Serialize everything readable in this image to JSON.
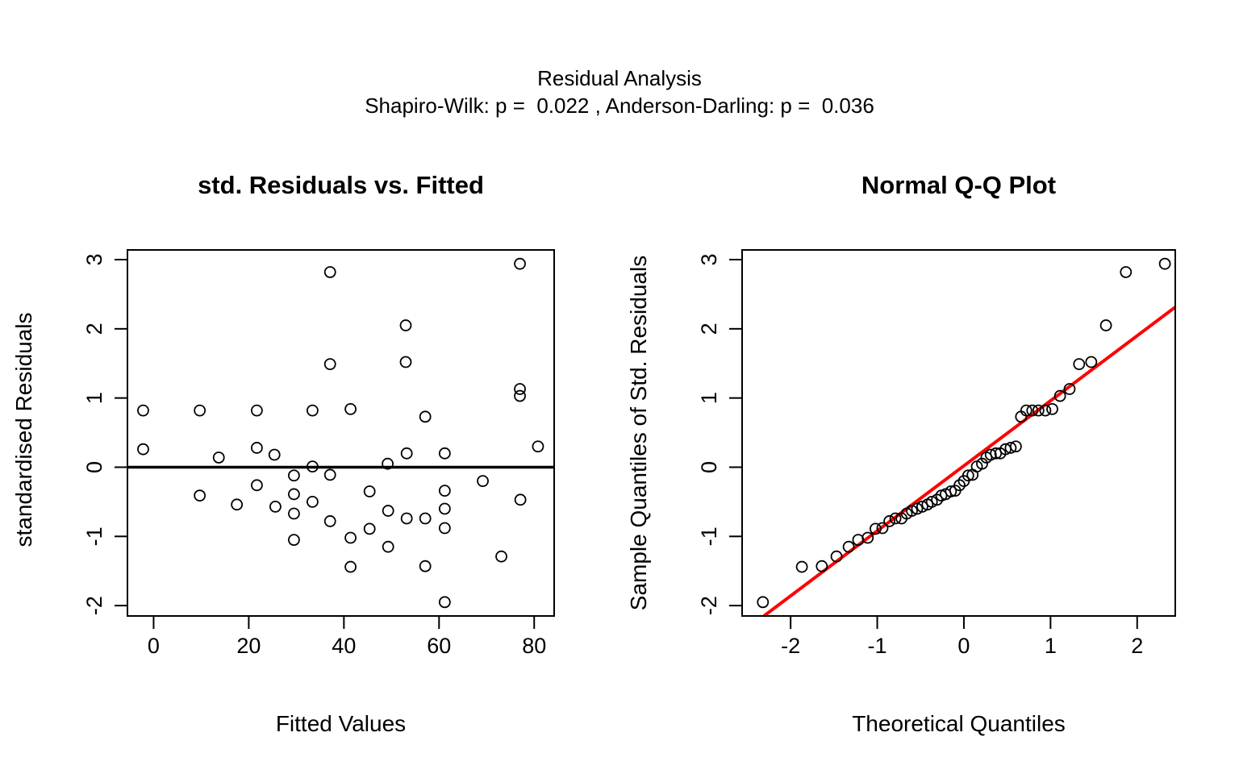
{
  "header": {
    "title": "Residual Analysis",
    "subtitle": "Shapiro-Wilk: p =  0.022 , Anderson-Darling: p =  0.036"
  },
  "colors": {
    "background": "#FFFFFF",
    "point_stroke": "#000000",
    "zero_line": "#000000",
    "qq_line": "#FF0000",
    "axis": "#000000"
  },
  "chart_data": [
    {
      "type": "scatter",
      "id": "residuals-vs-fitted",
      "title": "std. Residuals vs. Fitted",
      "xlabel": "Fitted Values",
      "ylabel": "standardised Residuals",
      "xlim": [
        -5.5,
        84.2
      ],
      "ylim": [
        -2.15,
        3.14
      ],
      "xticks": [
        0,
        20,
        40,
        60,
        80
      ],
      "yticks": [
        -2,
        -1,
        0,
        1,
        2,
        3
      ],
      "grid": false,
      "hline_y": 0,
      "points": [
        [
          -2.2,
          0.82
        ],
        [
          9.7,
          0.82
        ],
        [
          21.7,
          0.82
        ],
        [
          33.4,
          0.82
        ],
        [
          41.4,
          0.84
        ],
        [
          37.1,
          2.82
        ],
        [
          37.1,
          1.49
        ],
        [
          77.0,
          2.94
        ],
        [
          53.0,
          2.05
        ],
        [
          53.0,
          1.52
        ],
        [
          77.0,
          1.13
        ],
        [
          77.0,
          1.03
        ],
        [
          57.1,
          0.73
        ],
        [
          -2.2,
          0.26
        ],
        [
          13.7,
          0.14
        ],
        [
          21.7,
          0.28
        ],
        [
          25.4,
          0.18
        ],
        [
          33.4,
          0.01
        ],
        [
          29.5,
          -0.12
        ],
        [
          37.1,
          -0.11
        ],
        [
          21.7,
          -0.26
        ],
        [
          9.7,
          -0.41
        ],
        [
          17.5,
          -0.54
        ],
        [
          25.6,
          -0.57
        ],
        [
          29.5,
          -0.39
        ],
        [
          29.5,
          -0.67
        ],
        [
          33.4,
          -0.5
        ],
        [
          37.1,
          -0.78
        ],
        [
          29.5,
          -1.05
        ],
        [
          49.2,
          0.05
        ],
        [
          53.2,
          0.2
        ],
        [
          61.2,
          0.2
        ],
        [
          80.8,
          0.3
        ],
        [
          69.2,
          -0.2
        ],
        [
          45.4,
          -0.35
        ],
        [
          61.2,
          -0.34
        ],
        [
          77.1,
          -0.47
        ],
        [
          49.3,
          -0.63
        ],
        [
          53.2,
          -0.74
        ],
        [
          57.1,
          -0.74
        ],
        [
          61.2,
          -0.6
        ],
        [
          61.2,
          -0.88
        ],
        [
          45.4,
          -0.89
        ],
        [
          41.4,
          -1.02
        ],
        [
          49.3,
          -1.15
        ],
        [
          41.4,
          -1.44
        ],
        [
          57.1,
          -1.43
        ],
        [
          73.1,
          -1.29
        ],
        [
          61.2,
          -1.95
        ]
      ]
    },
    {
      "type": "scatter",
      "id": "normal-qq",
      "title": "Normal Q-Q Plot",
      "xlabel": "Theoretical Quantiles",
      "ylabel": "Sample Quantiles of Std. Residuals",
      "xlim": [
        -2.56,
        2.44
      ],
      "ylim": [
        -2.15,
        3.14
      ],
      "xticks": [
        -2,
        -1,
        0,
        1,
        2
      ],
      "yticks": [
        -2,
        -1,
        0,
        1,
        2,
        3
      ],
      "grid": false,
      "ref_line": {
        "slope": 0.94,
        "intercept": 0.02
      },
      "points": [
        [
          -2.32,
          -1.95
        ],
        [
          -1.87,
          -1.44
        ],
        [
          -1.64,
          -1.43
        ],
        [
          -1.47,
          -1.29
        ],
        [
          -1.33,
          -1.15
        ],
        [
          -1.22,
          -1.05
        ],
        [
          -1.11,
          -1.02
        ],
        [
          -1.02,
          -0.89
        ],
        [
          -0.94,
          -0.88
        ],
        [
          -0.86,
          -0.78
        ],
        [
          -0.79,
          -0.74
        ],
        [
          -0.72,
          -0.74
        ],
        [
          -0.66,
          -0.67
        ],
        [
          -0.6,
          -0.63
        ],
        [
          -0.54,
          -0.6
        ],
        [
          -0.48,
          -0.57
        ],
        [
          -0.42,
          -0.54
        ],
        [
          -0.37,
          -0.5
        ],
        [
          -0.31,
          -0.47
        ],
        [
          -0.26,
          -0.41
        ],
        [
          -0.21,
          -0.39
        ],
        [
          -0.15,
          -0.35
        ],
        [
          -0.1,
          -0.34
        ],
        [
          -0.05,
          -0.26
        ],
        [
          0.0,
          -0.2
        ],
        [
          0.05,
          -0.12
        ],
        [
          0.1,
          -0.11
        ],
        [
          0.15,
          0.01
        ],
        [
          0.21,
          0.05
        ],
        [
          0.26,
          0.14
        ],
        [
          0.31,
          0.18
        ],
        [
          0.37,
          0.2
        ],
        [
          0.42,
          0.2
        ],
        [
          0.48,
          0.26
        ],
        [
          0.54,
          0.28
        ],
        [
          0.6,
          0.3
        ],
        [
          0.66,
          0.73
        ],
        [
          0.72,
          0.82
        ],
        [
          0.79,
          0.82
        ],
        [
          0.86,
          0.82
        ],
        [
          0.94,
          0.82
        ],
        [
          1.02,
          0.84
        ],
        [
          1.11,
          1.03
        ],
        [
          1.22,
          1.13
        ],
        [
          1.33,
          1.49
        ],
        [
          1.47,
          1.52
        ],
        [
          1.64,
          2.05
        ],
        [
          1.87,
          2.82
        ],
        [
          2.32,
          2.94
        ]
      ]
    }
  ]
}
